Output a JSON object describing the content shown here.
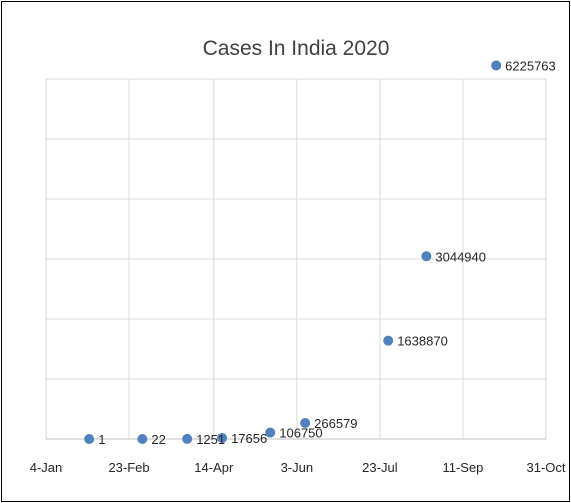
{
  "chart_data": {
    "type": "scatter",
    "title": "Cases In India 2020",
    "xlabel": "",
    "ylabel": "",
    "x_axis": {
      "type": "date",
      "ticks": [
        "2020-01-04",
        "2020-02-23",
        "2020-04-14",
        "2020-06-03",
        "2020-07-23",
        "2020-09-11",
        "2020-10-31"
      ],
      "tick_labels": [
        "4-Jan",
        "23-Feb",
        "14-Apr",
        "3-Jun",
        "23-Jul",
        "11-Sep",
        "31-Oct"
      ]
    },
    "y_axis": {
      "range": [
        0,
        6000000
      ],
      "gridlines": 6,
      "labels_visible": false
    },
    "grid": true,
    "legend": "none",
    "marker_color": "#4f81bd",
    "points": [
      {
        "x": "2020-01-30",
        "y": 1,
        "label": "1"
      },
      {
        "x": "2020-03-02",
        "y": 22,
        "label": "22"
      },
      {
        "x": "2020-03-29",
        "y": 1251,
        "label": "1251"
      },
      {
        "x": "2020-04-19",
        "y": 17656,
        "label": "17656"
      },
      {
        "x": "2020-05-18",
        "y": 106750,
        "label": "106750"
      },
      {
        "x": "2020-06-08",
        "y": 266579,
        "label": "266579"
      },
      {
        "x": "2020-07-28",
        "y": 1638870,
        "label": "1638870"
      },
      {
        "x": "2020-08-20",
        "y": 3044940,
        "label": "3044940"
      },
      {
        "x": "2020-10-01",
        "y": 6225763,
        "label": "6225763"
      }
    ]
  }
}
